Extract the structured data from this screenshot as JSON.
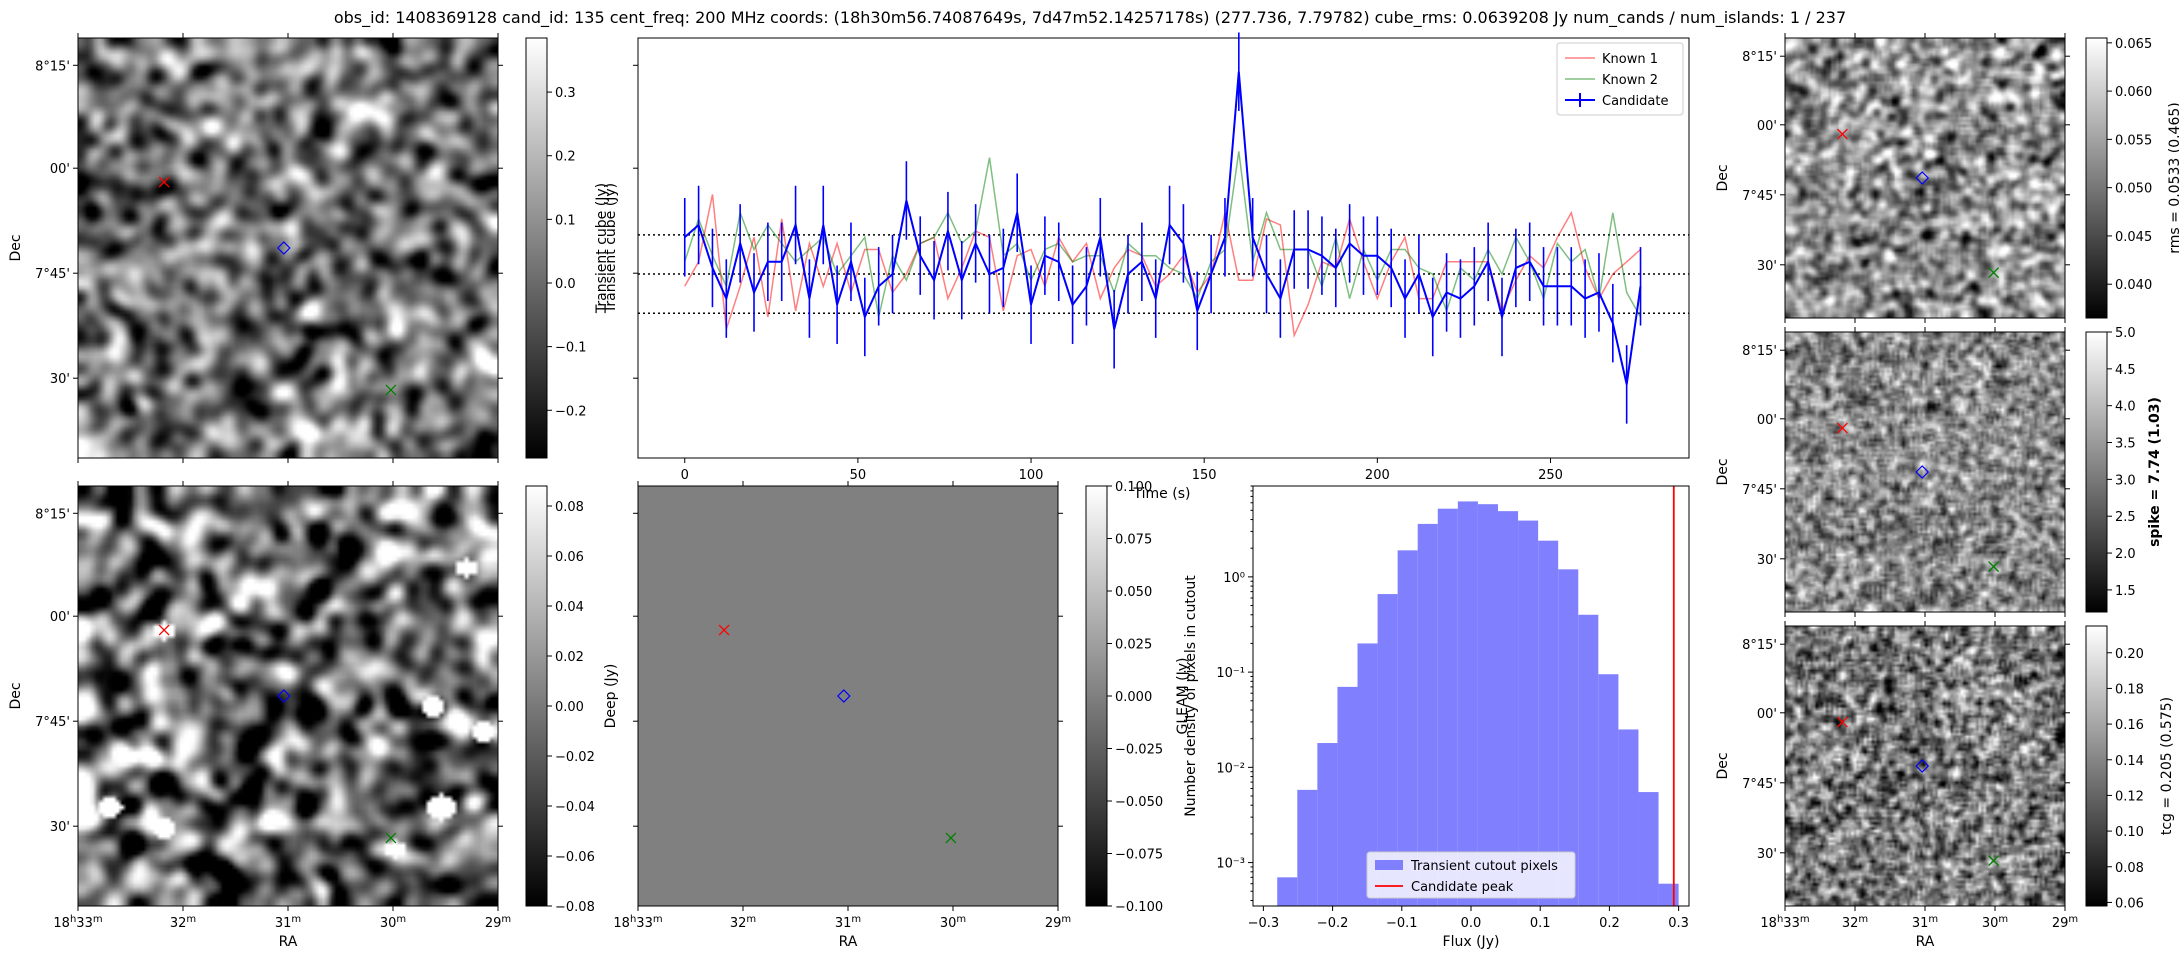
{
  "figure": {
    "title": "obs_id: 1408369128 cand_id: 135 cent_freq: 200 MHz coords: (18h30m56.74087649s, 7d47m52.14257178s) (277.736, 7.79782) cube_rms: 0.0639208 Jy num_cands / num_islands: 1 / 237"
  },
  "sky_axes": {
    "ra_label": "RA",
    "dec_label": "Dec",
    "ra_ticks": [
      "18h33m",
      "32m",
      "31m",
      "30m",
      "29m"
    ],
    "dec_ticks": [
      "8°15'",
      "00'",
      "7°45'",
      "30'"
    ]
  },
  "panels": {
    "transient_cube": {
      "colorbar_label": "Transient cube (Jy)",
      "colorbar_ticks": [
        "0.3",
        "0.2",
        "0.1",
        "0.0",
        "−0.1",
        "−0.2"
      ],
      "colorbar_range": [
        -0.275,
        0.385
      ]
    },
    "deep": {
      "colorbar_label": "Deep (Jy)",
      "colorbar_ticks": [
        "0.08",
        "0.06",
        "0.04",
        "0.02",
        "0.00",
        "−0.02",
        "−0.04",
        "−0.06",
        "−0.08"
      ],
      "colorbar_range": [
        -0.08,
        0.088
      ]
    },
    "gleam": {
      "colorbar_label": "GLEAM (Jy)",
      "colorbar_ticks": [
        "0.100",
        "0.075",
        "0.050",
        "0.025",
        "0.000",
        "−0.025",
        "−0.050",
        "−0.075",
        "−0.100"
      ],
      "colorbar_range": [
        -0.1,
        0.1
      ]
    },
    "rms": {
      "colorbar_label": "rms = 0.0533 (0.465)",
      "colorbar_ticks": [
        "0.065",
        "0.060",
        "0.055",
        "0.050",
        "0.045",
        "0.040"
      ],
      "colorbar_range": [
        0.0365,
        0.0655
      ]
    },
    "spike": {
      "colorbar_label": "spike = 7.74 (1.03)",
      "colorbar_ticks": [
        "5.0",
        "4.5",
        "4.0",
        "3.5",
        "3.0",
        "2.5",
        "2.0",
        "1.5"
      ],
      "colorbar_range": [
        1.2,
        5.0
      ]
    },
    "tcg": {
      "colorbar_label": "tcg = 0.205 (0.575)",
      "colorbar_ticks": [
        "0.20",
        "0.18",
        "0.16",
        "0.14",
        "0.12",
        "0.10",
        "0.08",
        "0.06"
      ],
      "colorbar_range": [
        0.058,
        0.215
      ]
    }
  },
  "colors": {
    "candidate": "#0000ff",
    "known_1": "#ff0000",
    "known_2": "#008000",
    "histogram": "#8080ff",
    "peak_line": "#ff0000"
  },
  "chart_data": [
    {
      "type": "line",
      "xlabel": "Time (s)",
      "ylabel": "Transient cube (Jy)",
      "xlim": [
        -13.5,
        290
      ],
      "ylim": [
        -0.3,
        0.385
      ],
      "x_ticks": [
        0,
        50,
        100,
        150,
        200,
        250
      ],
      "x_tick_labels": [
        "0",
        "50",
        "100",
        "150",
        "200",
        "250"
      ],
      "hlines": [
        0.0639,
        0.0,
        -0.0639
      ],
      "legend": {
        "location": "upper right",
        "entries": [
          "Known 1",
          "Known 2",
          "Candidate"
        ]
      },
      "x": [
        0,
        4,
        8,
        12,
        16,
        20,
        24,
        28,
        32,
        36,
        40,
        44,
        48,
        52,
        56,
        60,
        64,
        68,
        72,
        76,
        80,
        84,
        88,
        92,
        96,
        100,
        104,
        108,
        112,
        116,
        120,
        124,
        128,
        132,
        136,
        140,
        144,
        148,
        152,
        156,
        160,
        164,
        168,
        172,
        176,
        180,
        184,
        188,
        192,
        196,
        200,
        204,
        208,
        212,
        216,
        220,
        224,
        228,
        232,
        236,
        240,
        244,
        248,
        252,
        256,
        260,
        264,
        268,
        272,
        276
      ],
      "series": [
        {
          "name": "Known 1",
          "values": [
            -0.02,
            0.02,
            0.13,
            -0.09,
            -0.02,
            0.06,
            -0.07,
            0.09,
            -0.06,
            0.05,
            -0.02,
            0.05,
            -0.03,
            0.04,
            0.04,
            -0.03,
            0.0,
            0.05,
            0.06,
            -0.04,
            0.01,
            0.07,
            0.06,
            -0.06,
            0.03,
            0.04,
            -0.02,
            0.06,
            0.02,
            0.05,
            -0.04,
            0.01,
            0.04,
            0.03,
            -0.02,
            0.0,
            0.03,
            -0.03,
            0.0,
            0.1,
            -0.01,
            -0.01,
            0.09,
            0.08,
            -0.1,
            -0.05,
            0.02,
            0.01,
            0.09,
            0.02,
            -0.04,
            0.02,
            0.06,
            -0.04,
            -0.04,
            0.02,
            0.02,
            0.02,
            0.02,
            -0.06,
            -0.01,
            0.03,
            0.01,
            0.06,
            0.1,
            0.01,
            -0.04,
            0.0,
            0.02,
            0.04
          ]
        },
        {
          "name": "Known 2",
          "values": [
            0.02,
            0.09,
            0.03,
            -0.02,
            0.1,
            0.04,
            0.08,
            0.05,
            0.02,
            0.04,
            0.06,
            0.0,
            0.03,
            0.06,
            -0.07,
            0.03,
            -0.01,
            0.05,
            0.06,
            0.1,
            0.05,
            0.07,
            0.19,
            0.03,
            0.05,
            -0.01,
            0.04,
            0.05,
            0.02,
            0.03,
            0.03,
            -0.03,
            0.05,
            0.03,
            0.03,
            0.01,
            0.0,
            -0.04,
            0.02,
            0.04,
            0.2,
            0.02,
            0.1,
            0.04,
            0.04,
            0.04,
            -0.02,
            0.06,
            -0.04,
            0.04,
            -0.01,
            0.04,
            0.04,
            0.01,
            0.0,
            -0.06,
            0.01,
            -0.01,
            0.04,
            0.0,
            0.06,
            0.02,
            -0.04,
            0.05,
            0.02,
            0.04,
            -0.04,
            0.1,
            -0.03,
            -0.07
          ]
        },
        {
          "name": "Candidate",
          "values": [
            0.06,
            0.08,
            0.01,
            -0.04,
            0.05,
            -0.03,
            0.02,
            0.02,
            0.08,
            -0.04,
            0.08,
            -0.05,
            0.02,
            -0.07,
            -0.02,
            0.0,
            0.12,
            0.03,
            -0.01,
            0.07,
            -0.01,
            0.05,
            0.0,
            0.01,
            0.1,
            -0.05,
            0.03,
            0.02,
            -0.05,
            -0.02,
            0.06,
            -0.09,
            0.0,
            0.02,
            -0.04,
            0.08,
            0.05,
            -0.06,
            0.0,
            0.06,
            0.33,
            0.06,
            0.0,
            -0.04,
            0.04,
            0.04,
            0.03,
            0.01,
            0.05,
            0.03,
            0.03,
            0.01,
            -0.04,
            0.0,
            -0.07,
            -0.03,
            -0.04,
            -0.02,
            0.02,
            -0.07,
            0.01,
            0.02,
            -0.02,
            -0.02,
            -0.02,
            -0.04,
            -0.03,
            -0.08,
            -0.18,
            -0.02
          ],
          "error": 0.064
        }
      ]
    },
    {
      "type": "bar",
      "xlabel": "Flux (Jy)",
      "ylabel": "Number density of pixels in cutout",
      "y_scale": "log",
      "xlim": [
        -0.315,
        0.315
      ],
      "ylim": [
        0.00035,
        9.0
      ],
      "x_ticks": [
        -0.3,
        -0.2,
        -0.1,
        0.0,
        0.1,
        0.2,
        0.3
      ],
      "x_tick_labels": [
        "−0.3",
        "−0.2",
        "−0.1",
        "0.0",
        "0.1",
        "0.2",
        "0.3"
      ],
      "y_ticks": [
        0.001,
        0.01,
        0.1,
        1
      ],
      "y_tick_labels": [
        "10⁻³",
        "10⁻²",
        "10⁻¹",
        "10⁰"
      ],
      "bin_edges": [
        -0.28,
        -0.251,
        -0.222,
        -0.193,
        -0.164,
        -0.135,
        -0.106,
        -0.077,
        -0.048,
        -0.019,
        0.01,
        0.039,
        0.068,
        0.097,
        0.126,
        0.155,
        0.184,
        0.213,
        0.242,
        0.271,
        0.3
      ],
      "values": [
        0.0007,
        0.0058,
        0.018,
        0.07,
        0.2,
        0.66,
        1.9,
        3.6,
        5.2,
        6.2,
        5.8,
        4.9,
        3.9,
        2.4,
        1.2,
        0.4,
        0.095,
        0.025,
        0.0055,
        0.0006
      ],
      "candidate_peak": 0.293,
      "legend": {
        "location": "lower center",
        "entries": [
          "Transient cutout pixels",
          "Candidate peak"
        ]
      }
    }
  ]
}
